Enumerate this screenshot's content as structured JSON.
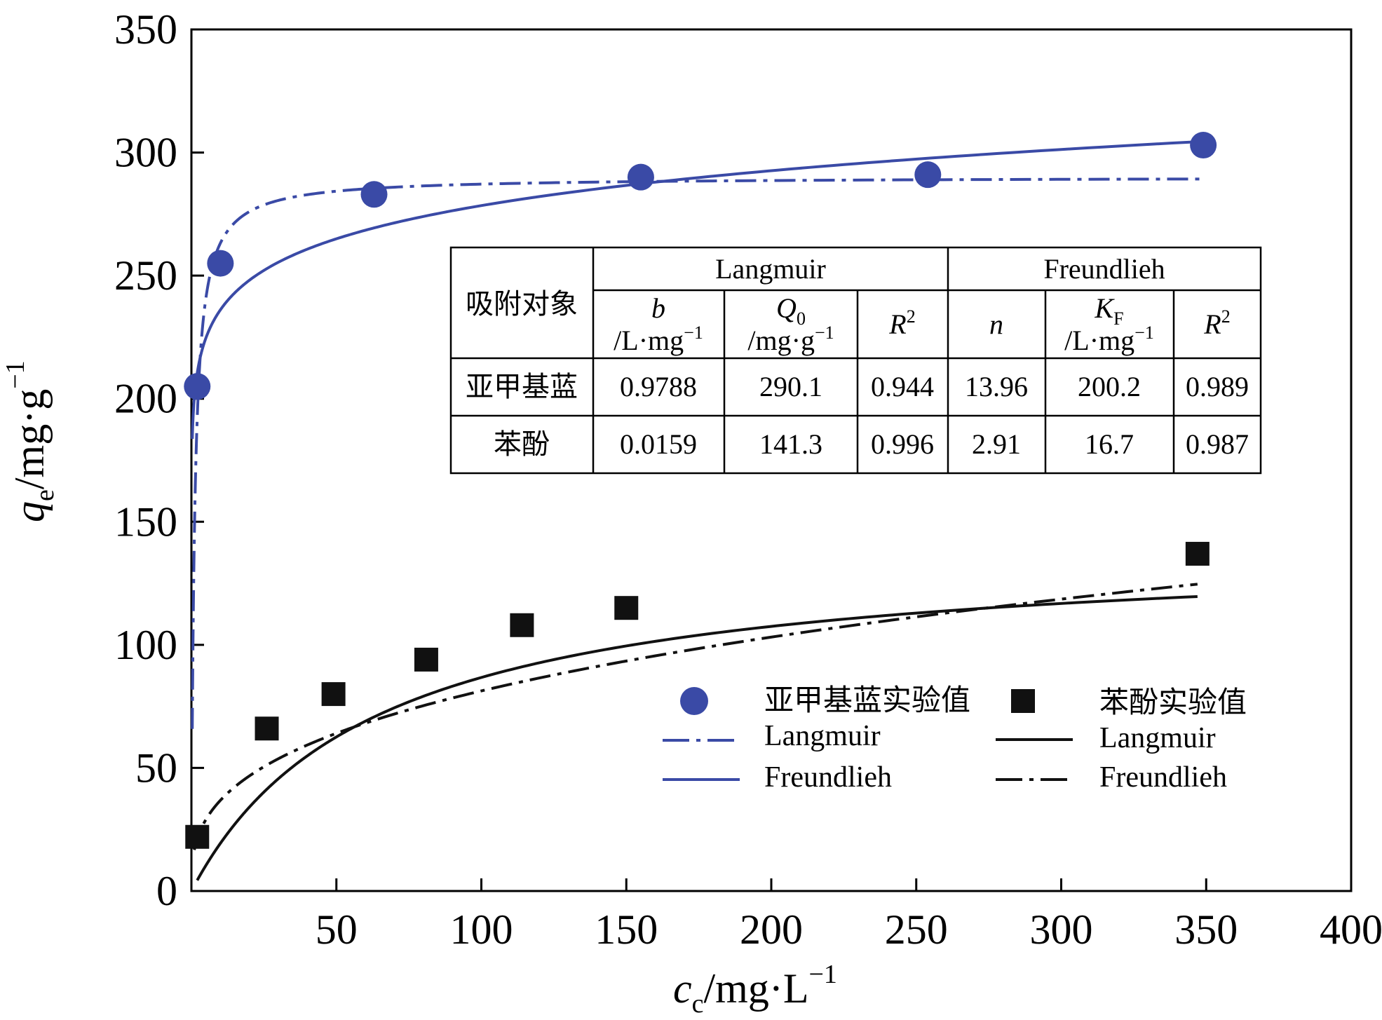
{
  "chart_data": {
    "type": "scatter",
    "xlabel": "c",
    "xlabel_sub": "c",
    "xlabel_unit": "/mg·L",
    "xlabel_sup": "−1",
    "ylabel": "q",
    "ylabel_sub": "e",
    "ylabel_unit": "/mg·g",
    "ylabel_sup": "−1",
    "xlim": [
      0,
      400
    ],
    "ylim": [
      0,
      350
    ],
    "xticks": [
      "50",
      "100",
      "150",
      "200",
      "250",
      "300",
      "350",
      "400"
    ],
    "yticks": [
      "0",
      "50",
      "100",
      "150",
      "200",
      "250",
      "300",
      "350"
    ],
    "grid": false,
    "colors": {
      "blue": "#3a4aa6",
      "black": "#111111"
    },
    "series": [
      {
        "name": "亚甲基蓝实验值",
        "kind": "points",
        "marker": "circle",
        "color": "#3a4aa6",
        "x": [
          2,
          10,
          63,
          155,
          254,
          349
        ],
        "y": [
          205,
          255,
          283,
          290,
          291,
          303
        ]
      },
      {
        "name": "苯酚实验值",
        "kind": "points",
        "marker": "square",
        "color": "#111111",
        "x": [
          2,
          26,
          49,
          81,
          114,
          150,
          347
        ],
        "y": [
          22,
          66,
          80,
          94,
          108,
          115,
          137
        ]
      },
      {
        "name": "Langmuir",
        "kind": "langmuir",
        "style": "dashdot",
        "color": "#3a4aa6",
        "params": {
          "b": 0.9788,
          "Q0": 290.1
        },
        "x_start": 0.3,
        "x_end": 350
      },
      {
        "name": "Freundlieh",
        "kind": "freundlich",
        "style": "solid",
        "color": "#3a4aa6",
        "params": {
          "n": 13.96,
          "KF": 200.2
        },
        "x_start": 0.3,
        "x_end": 350
      },
      {
        "name": "Langmuir",
        "kind": "langmuir",
        "style": "solid",
        "color": "#111111",
        "params": {
          "b": 0.0159,
          "Q0": 141.3
        },
        "x_start": 2,
        "x_end": 347
      },
      {
        "name": "Freundlieh",
        "kind": "freundlich",
        "style": "dashdot",
        "color": "#111111",
        "params": {
          "n": 2.91,
          "KF": 16.7
        },
        "x_start": 1,
        "x_end": 347
      }
    ]
  },
  "table": {
    "header_object": "吸附对象",
    "langmuir": "Langmuir",
    "freundlich": "Freundlieh",
    "cols": [
      {
        "sym": "b",
        "sub": "",
        "unit": "/L·mg",
        "sup": "−1"
      },
      {
        "sym": "Q",
        "sub": "0",
        "unit": "/mg·g",
        "sup": "−1"
      },
      {
        "sym": "R",
        "sub": "",
        "unit": "",
        "sup": "2"
      },
      {
        "sym": "n",
        "sub": "",
        "unit": "",
        "sup": ""
      },
      {
        "sym": "K",
        "sub": "F",
        "unit": "/L·mg",
        "sup": "−1"
      },
      {
        "sym": "R",
        "sub": "",
        "unit": "",
        "sup": "2"
      }
    ],
    "rows": [
      {
        "name": "亚甲基蓝",
        "values": [
          "0.9788",
          "290.1",
          "0.944",
          "13.96",
          "200.2",
          "0.989"
        ]
      },
      {
        "name": "苯酚",
        "values": [
          "0.0159",
          "141.3",
          "0.996",
          "2.91",
          "16.7",
          "0.987"
        ]
      }
    ]
  },
  "legend": {
    "blue_points": "亚甲基蓝实验值",
    "blue_langmuir": "Langmuir",
    "blue_freundlich": "Freundlieh",
    "black_points": "苯酚实验值",
    "black_langmuir": "Langmuir",
    "black_freundlich": "Freundlieh"
  }
}
